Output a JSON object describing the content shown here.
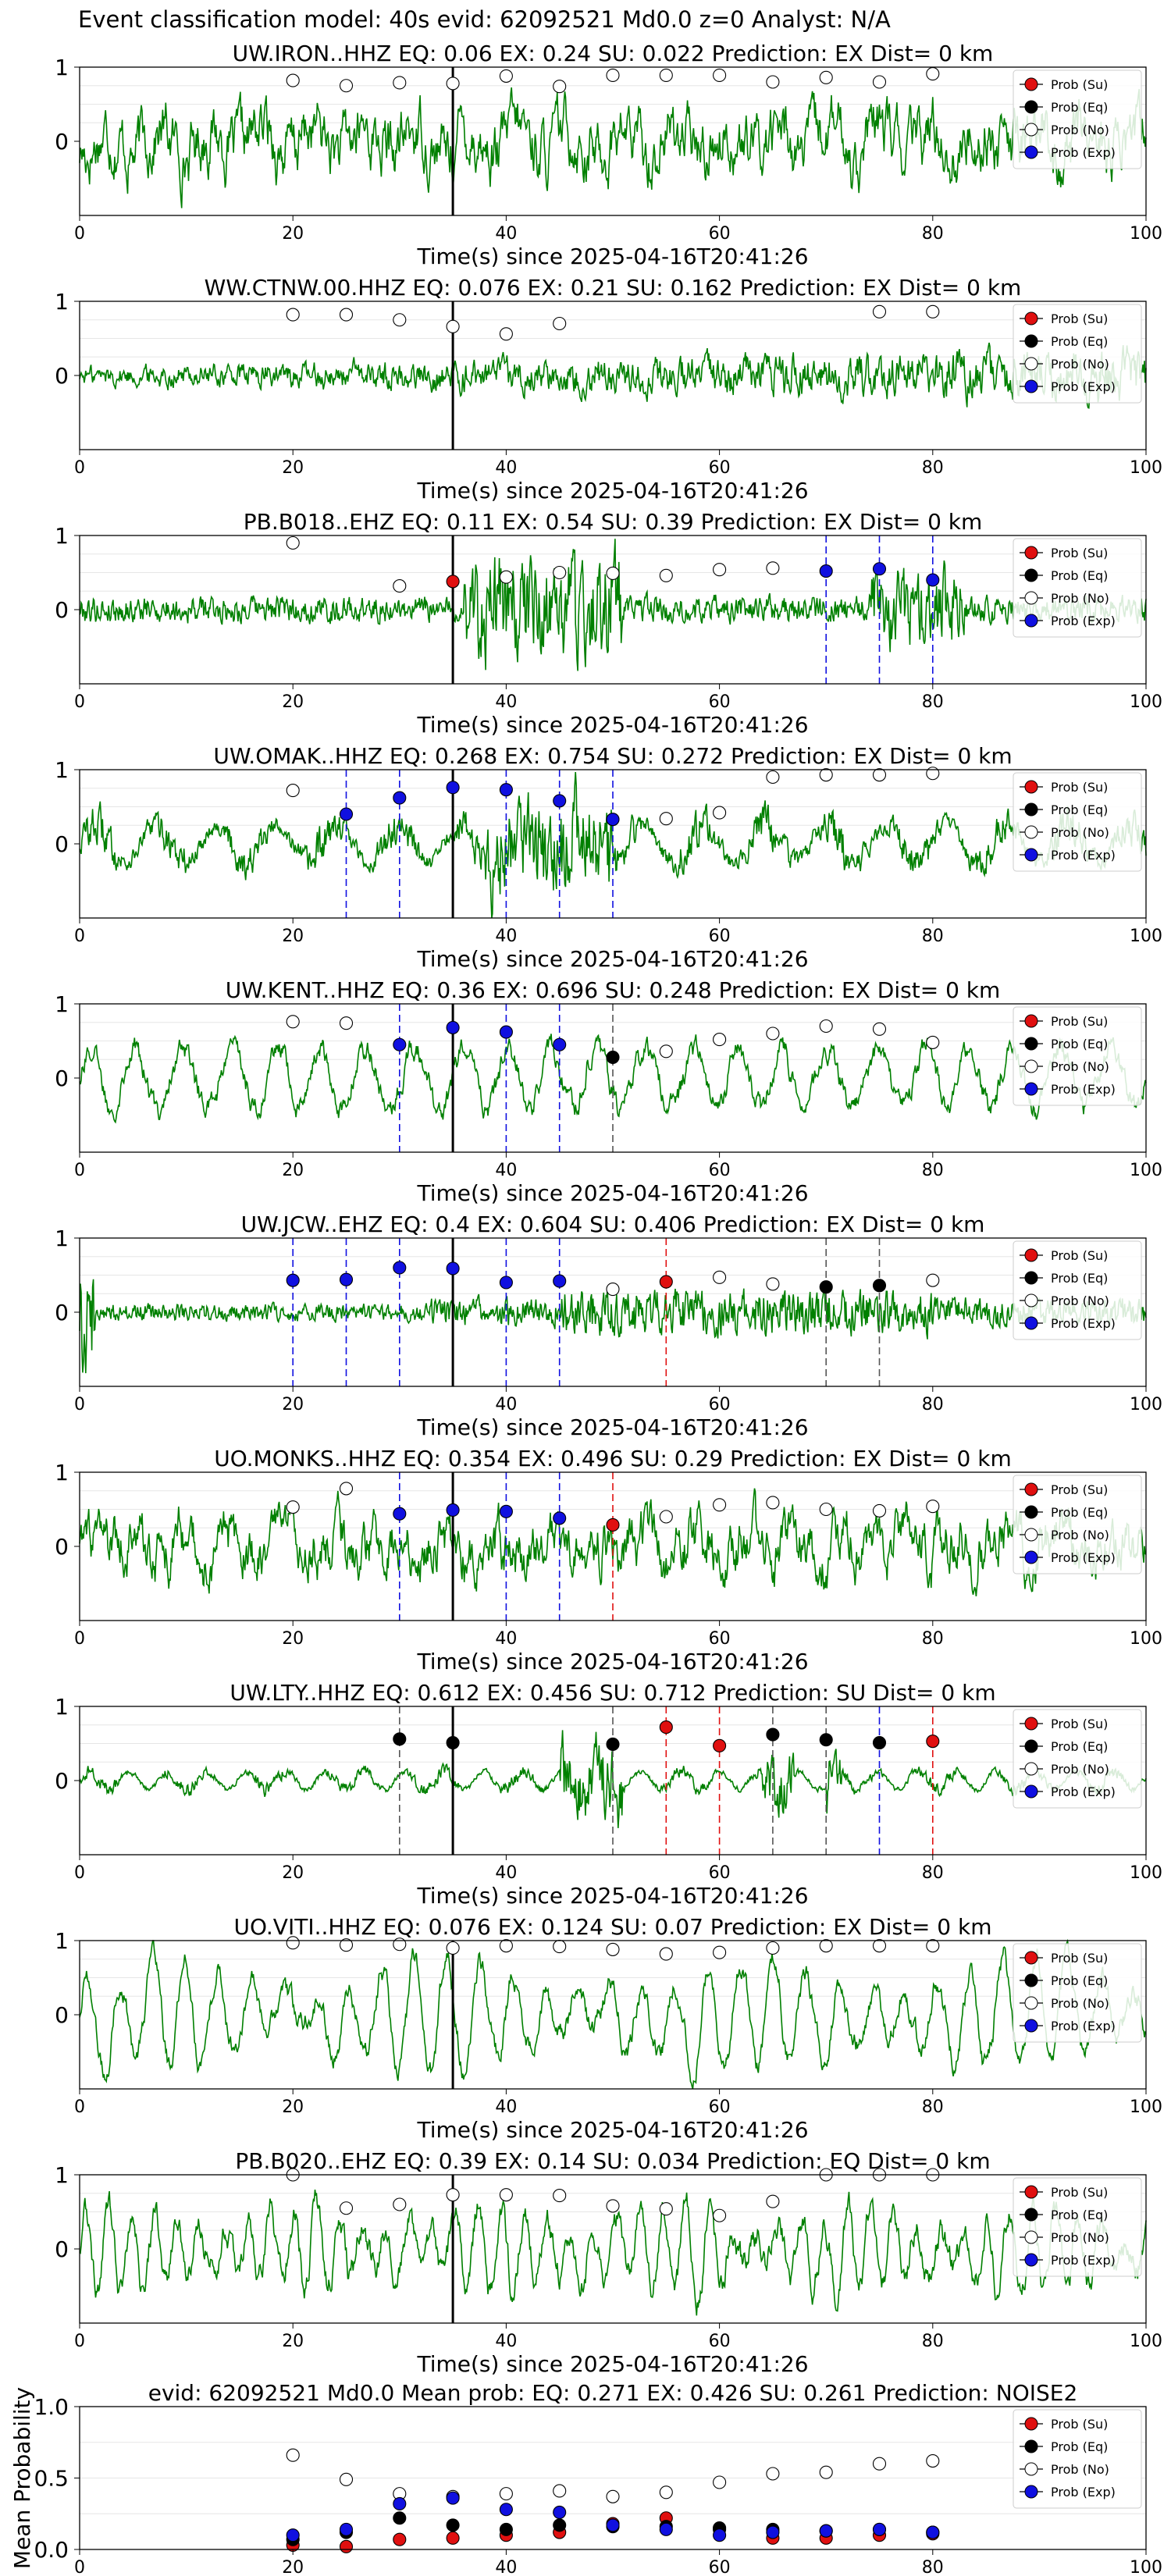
{
  "figure_title": "Event classification model: 40s evid: 62092521 Md0.0 z=0 Analyst: N/A",
  "colors": {
    "waveform": "#008000",
    "su": "#e01010",
    "eq": "#000000",
    "no": "#ffffff",
    "exp": "#1010e0"
  },
  "legend": [
    "Prob (Su)",
    "Prob (Eq)",
    "Prob (No)",
    "Prob (Exp)"
  ],
  "chart_data": [
    {
      "type": "line",
      "subtype": "waveform_with_probabilities",
      "title": "UW.IRON..HHZ   EQ: 0.06   EX: 0.24   SU: 0.022   Prediction: EX    Dist= 0 km",
      "xlabel": "Time(s) since 2025-04-16T20:41:26",
      "xlim": [
        0,
        100
      ],
      "xticks": [
        0,
        20,
        40,
        60,
        80,
        100
      ],
      "yticks": [
        0,
        1
      ],
      "ylim": [
        -1,
        1
      ],
      "waveform": {
        "type": "noise",
        "amp": 0.62
      },
      "event_line": 35,
      "points": [
        [
          20,
          "no",
          0.82
        ],
        [
          25,
          "no",
          0.75
        ],
        [
          30,
          "no",
          0.79
        ],
        [
          35,
          "no",
          0.78
        ],
        [
          40,
          "no",
          0.88
        ],
        [
          45,
          "no",
          0.74
        ],
        [
          50,
          "no",
          0.89
        ],
        [
          55,
          "no",
          0.89
        ],
        [
          60,
          "no",
          0.89
        ],
        [
          65,
          "no",
          0.8
        ],
        [
          70,
          "no",
          0.86
        ],
        [
          75,
          "no",
          0.8
        ],
        [
          80,
          "no",
          0.91
        ]
      ],
      "vlines": []
    },
    {
      "type": "line",
      "subtype": "waveform_with_probabilities",
      "title": "WW.CTNW.00.HHZ   EQ: 0.076   EX: 0.21   SU: 0.162   Prediction: EX    Dist= 0 km",
      "xlabel": "Time(s) since 2025-04-16T20:41:26",
      "xlim": [
        0,
        100
      ],
      "xticks": [
        0,
        20,
        40,
        60,
        80,
        100
      ],
      "yticks": [
        0,
        1
      ],
      "ylim": [
        -1,
        1
      ],
      "waveform": {
        "type": "noise_growing",
        "amp": 0.3
      },
      "event_line": 35,
      "points": [
        [
          20,
          "no",
          0.82
        ],
        [
          25,
          "no",
          0.82
        ],
        [
          30,
          "no",
          0.75
        ],
        [
          35,
          "no",
          0.66
        ],
        [
          40,
          "no",
          0.56
        ],
        [
          45,
          "no",
          0.7
        ],
        [
          75,
          "no",
          0.86
        ],
        [
          80,
          "no",
          0.86
        ]
      ],
      "vlines": []
    },
    {
      "type": "line",
      "subtype": "waveform_with_probabilities",
      "title": "PB.B018..EHZ   EQ: 0.11   EX: 0.54   SU: 0.39   Prediction: EX    Dist= 0 km",
      "xlabel": "Time(s) since 2025-04-16T20:41:26",
      "xlim": [
        0,
        100
      ],
      "xticks": [
        0,
        20,
        40,
        60,
        80,
        100
      ],
      "yticks": [
        0,
        1
      ],
      "ylim": [
        -1,
        1
      ],
      "waveform": {
        "type": "bursts",
        "amp": 0.45
      },
      "event_line": 35,
      "points": [
        [
          20,
          "no",
          0.9
        ],
        [
          30,
          "no",
          0.32
        ],
        [
          35,
          "su",
          0.38
        ],
        [
          40,
          "no",
          0.44
        ],
        [
          45,
          "no",
          0.5
        ],
        [
          50,
          "no",
          0.49
        ],
        [
          55,
          "no",
          0.46
        ],
        [
          60,
          "no",
          0.54
        ],
        [
          65,
          "no",
          0.56
        ],
        [
          70,
          "exp",
          0.52
        ],
        [
          75,
          "exp",
          0.55
        ],
        [
          80,
          "exp",
          0.4
        ]
      ],
      "vlines": [
        [
          70,
          "exp"
        ],
        [
          75,
          "exp"
        ],
        [
          80,
          "exp"
        ]
      ]
    },
    {
      "type": "line",
      "subtype": "waveform_with_probabilities",
      "title": "UW.OMAK..HHZ   EQ: 0.268   EX: 0.754   SU: 0.272   Prediction: EX    Dist= 0 km",
      "xlabel": "Time(s) since 2025-04-16T20:41:26",
      "xlim": [
        0,
        100
      ],
      "xticks": [
        0,
        20,
        40,
        60,
        80,
        100
      ],
      "yticks": [
        0,
        1
      ],
      "ylim": [
        -1,
        1
      ],
      "waveform": {
        "type": "bursts_low",
        "amp": 0.4
      },
      "event_line": 35,
      "points": [
        [
          20,
          "no",
          0.72
        ],
        [
          25,
          "exp",
          0.4
        ],
        [
          30,
          "exp",
          0.62
        ],
        [
          35,
          "exp",
          0.76
        ],
        [
          40,
          "exp",
          0.73
        ],
        [
          45,
          "exp",
          0.58
        ],
        [
          50,
          "exp",
          0.33
        ],
        [
          55,
          "no",
          0.34
        ],
        [
          60,
          "no",
          0.42
        ],
        [
          65,
          "no",
          0.9
        ],
        [
          70,
          "no",
          0.93
        ],
        [
          75,
          "no",
          0.93
        ],
        [
          80,
          "no",
          0.95
        ]
      ],
      "vlines": [
        [
          25,
          "exp"
        ],
        [
          30,
          "exp"
        ],
        [
          40,
          "exp"
        ],
        [
          45,
          "exp"
        ],
        [
          50,
          "exp"
        ]
      ]
    },
    {
      "type": "line",
      "subtype": "waveform_with_probabilities",
      "title": "UW.KENT..HHZ   EQ: 0.36   EX: 0.696   SU: 0.248   Prediction: EX    Dist= 0 km",
      "xlabel": "Time(s) since 2025-04-16T20:41:26",
      "xlim": [
        0,
        100
      ],
      "xticks": [
        0,
        20,
        40,
        60,
        80,
        100
      ],
      "yticks": [
        0,
        1
      ],
      "ylim": [
        -1,
        1
      ],
      "waveform": {
        "type": "wavy",
        "amp": 0.45
      },
      "event_line": 35,
      "points": [
        [
          20,
          "no",
          0.76
        ],
        [
          25,
          "no",
          0.74
        ],
        [
          30,
          "exp",
          0.45
        ],
        [
          35,
          "exp",
          0.68
        ],
        [
          40,
          "exp",
          0.62
        ],
        [
          45,
          "exp",
          0.45
        ],
        [
          50,
          "eq",
          0.28
        ],
        [
          55,
          "no",
          0.36
        ],
        [
          60,
          "no",
          0.52
        ],
        [
          65,
          "no",
          0.6
        ],
        [
          70,
          "no",
          0.7
        ],
        [
          75,
          "no",
          0.66
        ],
        [
          80,
          "no",
          0.48
        ]
      ],
      "vlines": [
        [
          30,
          "exp"
        ],
        [
          40,
          "exp"
        ],
        [
          45,
          "exp"
        ],
        [
          50,
          "eq"
        ]
      ]
    },
    {
      "type": "line",
      "subtype": "waveform_with_probabilities",
      "title": "UW.JCW..EHZ   EQ: 0.4   EX: 0.604   SU: 0.406   Prediction: EX    Dist= 0 km",
      "xlabel": "Time(s) since 2025-04-16T20:41:26",
      "xlim": [
        0,
        100
      ],
      "xticks": [
        0,
        20,
        40,
        60,
        80,
        100
      ],
      "yticks": [
        0,
        1
      ],
      "ylim": [
        -1,
        1
      ],
      "waveform": {
        "type": "low_noise_growing",
        "amp": 0.2
      },
      "event_line": 35,
      "points": [
        [
          20,
          "exp",
          0.43
        ],
        [
          25,
          "exp",
          0.44
        ],
        [
          30,
          "exp",
          0.6
        ],
        [
          35,
          "exp",
          0.59
        ],
        [
          40,
          "exp",
          0.4
        ],
        [
          45,
          "exp",
          0.42
        ],
        [
          50,
          "no",
          0.31
        ],
        [
          55,
          "su",
          0.41
        ],
        [
          60,
          "no",
          0.47
        ],
        [
          65,
          "no",
          0.38
        ],
        [
          70,
          "eq",
          0.34
        ],
        [
          75,
          "eq",
          0.36
        ],
        [
          80,
          "no",
          0.43
        ]
      ],
      "vlines": [
        [
          20,
          "exp"
        ],
        [
          25,
          "exp"
        ],
        [
          30,
          "exp"
        ],
        [
          40,
          "exp"
        ],
        [
          45,
          "exp"
        ],
        [
          55,
          "su"
        ],
        [
          70,
          "eq"
        ],
        [
          75,
          "eq"
        ]
      ]
    },
    {
      "type": "line",
      "subtype": "waveform_with_probabilities",
      "title": "UO.MONKS..HHZ   EQ: 0.354   EX: 0.496   SU: 0.29   Prediction: EX    Dist= 0 km",
      "xlabel": "Time(s) since 2025-04-16T20:41:26",
      "xlim": [
        0,
        100
      ],
      "xticks": [
        0,
        20,
        40,
        60,
        80,
        100
      ],
      "yticks": [
        0,
        1
      ],
      "ylim": [
        -1,
        1
      ],
      "waveform": {
        "type": "noise",
        "amp": 0.55
      },
      "event_line": 35,
      "points": [
        [
          20,
          "no",
          0.53
        ],
        [
          25,
          "no",
          0.78
        ],
        [
          30,
          "exp",
          0.44
        ],
        [
          35,
          "exp",
          0.49
        ],
        [
          40,
          "exp",
          0.47
        ],
        [
          45,
          "exp",
          0.38
        ],
        [
          50,
          "su",
          0.29
        ],
        [
          55,
          "no",
          0.4
        ],
        [
          60,
          "no",
          0.56
        ],
        [
          65,
          "no",
          0.59
        ],
        [
          70,
          "no",
          0.5
        ],
        [
          75,
          "no",
          0.48
        ],
        [
          80,
          "no",
          0.54
        ]
      ],
      "vlines": [
        [
          30,
          "exp"
        ],
        [
          40,
          "exp"
        ],
        [
          45,
          "exp"
        ],
        [
          50,
          "su"
        ]
      ]
    },
    {
      "type": "line",
      "subtype": "waveform_with_probabilities",
      "title": "UW.LTY..HHZ   EQ: 0.612   EX: 0.456   SU: 0.712   Prediction: SU    Dist= 0 km",
      "xlabel": "Time(s) since 2025-04-16T20:41:26",
      "xlim": [
        0,
        100
      ],
      "xticks": [
        0,
        20,
        40,
        60,
        80,
        100
      ],
      "yticks": [
        0,
        1
      ],
      "ylim": [
        -1,
        1
      ],
      "waveform": {
        "type": "spikes",
        "amp": 0.15
      },
      "event_line": 35,
      "points": [
        [
          30,
          "eq",
          0.56
        ],
        [
          35,
          "eq",
          0.51
        ],
        [
          50,
          "eq",
          0.49
        ],
        [
          55,
          "su",
          0.72
        ],
        [
          60,
          "su",
          0.47
        ],
        [
          65,
          "eq",
          0.62
        ],
        [
          70,
          "eq",
          0.55
        ],
        [
          75,
          "eq",
          0.51
        ],
        [
          80,
          "su",
          0.53
        ]
      ],
      "vlines": [
        [
          30,
          "eq"
        ],
        [
          50,
          "eq"
        ],
        [
          55,
          "su"
        ],
        [
          60,
          "su"
        ],
        [
          65,
          "eq"
        ],
        [
          70,
          "eq"
        ],
        [
          75,
          "exp"
        ],
        [
          80,
          "su"
        ]
      ]
    },
    {
      "type": "line",
      "subtype": "waveform_with_probabilities",
      "title": "UO.VITI..HHZ   EQ: 0.076   EX: 0.124   SU: 0.07   Prediction: EX    Dist= 0 km",
      "xlabel": "Time(s) since 2025-04-16T20:41:26",
      "xlim": [
        0,
        100
      ],
      "xticks": [
        0,
        20,
        40,
        60,
        80,
        100
      ],
      "yticks": [
        0,
        1
      ],
      "ylim": [
        -1,
        1
      ],
      "waveform": {
        "type": "smooth",
        "amp": 0.9
      },
      "event_line": 35,
      "points": [
        [
          20,
          "no",
          0.97
        ],
        [
          25,
          "no",
          0.94
        ],
        [
          30,
          "no",
          0.95
        ],
        [
          35,
          "no",
          0.9
        ],
        [
          40,
          "no",
          0.93
        ],
        [
          45,
          "no",
          0.92
        ],
        [
          50,
          "no",
          0.88
        ],
        [
          55,
          "no",
          0.82
        ],
        [
          60,
          "no",
          0.84
        ],
        [
          65,
          "no",
          0.9
        ],
        [
          70,
          "no",
          0.93
        ],
        [
          75,
          "no",
          0.93
        ],
        [
          80,
          "no",
          0.93
        ]
      ],
      "vlines": []
    },
    {
      "type": "line",
      "subtype": "waveform_with_probabilities",
      "title": "PB.B020..EHZ   EQ: 0.39   EX: 0.14   SU: 0.034   Prediction: EQ    Dist= 0 km",
      "xlabel": "Time(s) since 2025-04-16T20:41:26",
      "xlim": [
        0,
        100
      ],
      "xticks": [
        0,
        20,
        40,
        60,
        80,
        100
      ],
      "yticks": [
        0,
        1
      ],
      "ylim": [
        -1,
        1
      ],
      "waveform": {
        "type": "smooth_fast",
        "amp": 0.75
      },
      "event_line": 35,
      "points": [
        [
          20,
          "no",
          1.0
        ],
        [
          25,
          "no",
          0.55
        ],
        [
          30,
          "no",
          0.6
        ],
        [
          35,
          "no",
          0.73
        ],
        [
          40,
          "no",
          0.73
        ],
        [
          45,
          "no",
          0.72
        ],
        [
          50,
          "no",
          0.58
        ],
        [
          55,
          "no",
          0.54
        ],
        [
          60,
          "no",
          0.45
        ],
        [
          65,
          "no",
          0.64
        ],
        [
          70,
          "no",
          1.0
        ],
        [
          75,
          "no",
          1.0
        ],
        [
          80,
          "no",
          1.0
        ]
      ],
      "vlines": []
    },
    {
      "type": "scatter",
      "subtype": "mean_probability",
      "title": "evid: 62092521   Md0.0   Mean prob:   EQ: 0.271   EX: 0.426   SU: 0.261   Prediction: NOISE2",
      "ylabel": "Mean Probability",
      "xlim": [
        0,
        100
      ],
      "ylim": [
        0,
        1
      ],
      "xticks": [
        0,
        20,
        40,
        60,
        80,
        100
      ],
      "yticks": [
        0.0,
        0.5,
        1.0
      ],
      "ytick_labels": [
        "0.0",
        "0.5",
        "1.0"
      ],
      "series": [
        {
          "name": "Prob (Su)",
          "key": "su",
          "x": [
            20,
            25,
            30,
            35,
            40,
            45,
            50,
            55,
            60,
            65,
            70,
            75,
            80
          ],
          "y": [
            0.03,
            0.02,
            0.07,
            0.08,
            0.1,
            0.12,
            0.18,
            0.22,
            0.14,
            0.08,
            0.08,
            0.1,
            0.11
          ]
        },
        {
          "name": "Prob (Eq)",
          "key": "eq",
          "x": [
            20,
            25,
            30,
            35,
            40,
            45,
            50,
            55,
            60,
            65,
            70,
            75,
            80
          ],
          "y": [
            0.07,
            0.12,
            0.22,
            0.17,
            0.14,
            0.17,
            0.16,
            0.16,
            0.15,
            0.14,
            0.13,
            0.14,
            0.12
          ]
        },
        {
          "name": "Prob (No)",
          "key": "no",
          "x": [
            20,
            25,
            30,
            35,
            40,
            45,
            50,
            55,
            60,
            65,
            70,
            75,
            80
          ],
          "y": [
            0.66,
            0.49,
            0.39,
            0.37,
            0.39,
            0.41,
            0.37,
            0.4,
            0.47,
            0.53,
            0.54,
            0.6,
            0.62
          ]
        },
        {
          "name": "Prob (Exp)",
          "key": "exp",
          "x": [
            20,
            25,
            30,
            35,
            40,
            45,
            50,
            55,
            60,
            65,
            70,
            75,
            80
          ],
          "y": [
            0.1,
            0.14,
            0.32,
            0.36,
            0.28,
            0.26,
            0.17,
            0.14,
            0.1,
            0.12,
            0.13,
            0.14,
            0.12
          ]
        }
      ]
    }
  ]
}
